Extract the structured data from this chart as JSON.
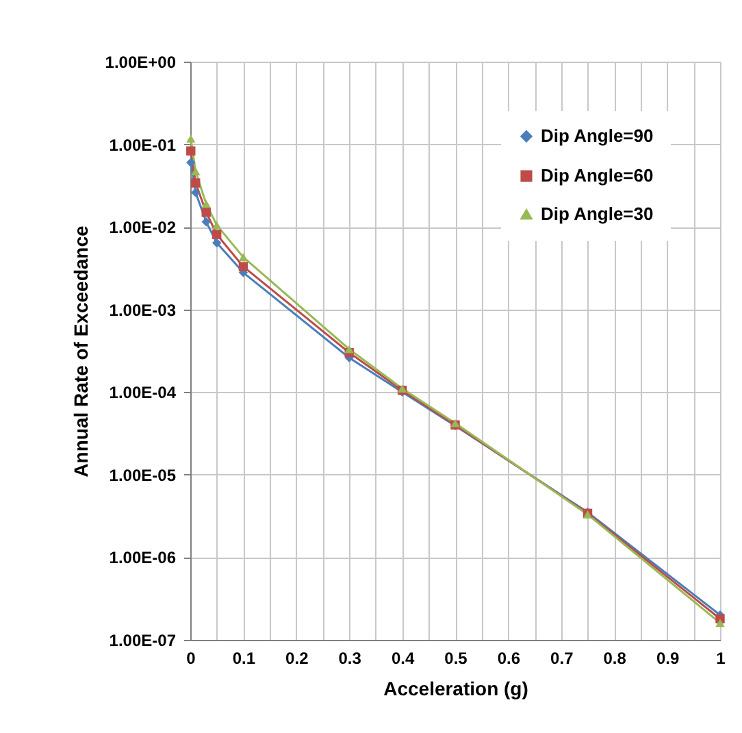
{
  "chart_data": {
    "type": "line",
    "xlabel": "Acceleration (g)",
    "ylabel": "Annual Rate of Exceedance",
    "x": [
      0.001,
      0.01,
      0.03,
      0.05,
      0.1,
      0.3,
      0.4,
      0.5,
      0.75,
      1
    ],
    "series": [
      {
        "name": "Dip Angle=90",
        "color": "#4a7ebb",
        "marker": "diamond",
        "values": [
          0.06,
          0.026,
          0.0115,
          0.0064,
          0.0028,
          0.00026,
          0.0001,
          3.9e-05,
          3.5e-06,
          2e-07
        ]
      },
      {
        "name": "Dip Angle=60",
        "color": "#be4b48",
        "marker": "square",
        "values": [
          0.083,
          0.034,
          0.015,
          0.0081,
          0.0033,
          0.0003,
          0.000105,
          4e-05,
          3.4e-06,
          1.8e-07
        ]
      },
      {
        "name": "Dip Angle=30",
        "color": "#98b954",
        "marker": "triangle",
        "values": [
          0.117,
          0.047,
          0.019,
          0.0105,
          0.0043,
          0.00033,
          0.00011,
          4.2e-05,
          3.3e-06,
          1.6e-07
        ]
      }
    ],
    "xlim": [
      0,
      1
    ],
    "xticks": [
      0,
      {
        "value": 0.05,
        "label": null
      },
      0.1,
      {
        "value": 0.15,
        "label": null
      },
      0.2,
      {
        "value": 0.25,
        "label": null
      },
      0.3,
      {
        "value": 0.35,
        "label": null
      },
      0.4,
      {
        "value": 0.45,
        "label": null
      },
      0.5,
      {
        "value": 0.55,
        "label": null
      },
      0.6,
      {
        "value": 0.65,
        "label": null
      },
      0.7,
      {
        "value": 0.75,
        "label": null
      },
      0.8,
      {
        "value": 0.85,
        "label": null
      },
      0.9,
      {
        "value": 0.95,
        "label": null
      },
      1
    ],
    "ylim": [
      1e-07,
      1
    ],
    "yticks": [
      {
        "value": 1,
        "label": "1.00E+00"
      },
      {
        "value": 0.1,
        "label": "1.00E-01"
      },
      {
        "value": 0.01,
        "label": "1.00E-02"
      },
      {
        "value": 0.001,
        "label": "1.00E-03"
      },
      {
        "value": 0.0001,
        "label": "1.00E-04"
      },
      {
        "value": 1e-05,
        "label": "1.00E-05"
      },
      {
        "value": 1e-06,
        "label": "1.00E-06"
      },
      {
        "value": 1e-07,
        "label": "1.00E-07"
      }
    ],
    "log": "y",
    "grid": true,
    "legend": "top right",
    "line_style": "solid"
  }
}
